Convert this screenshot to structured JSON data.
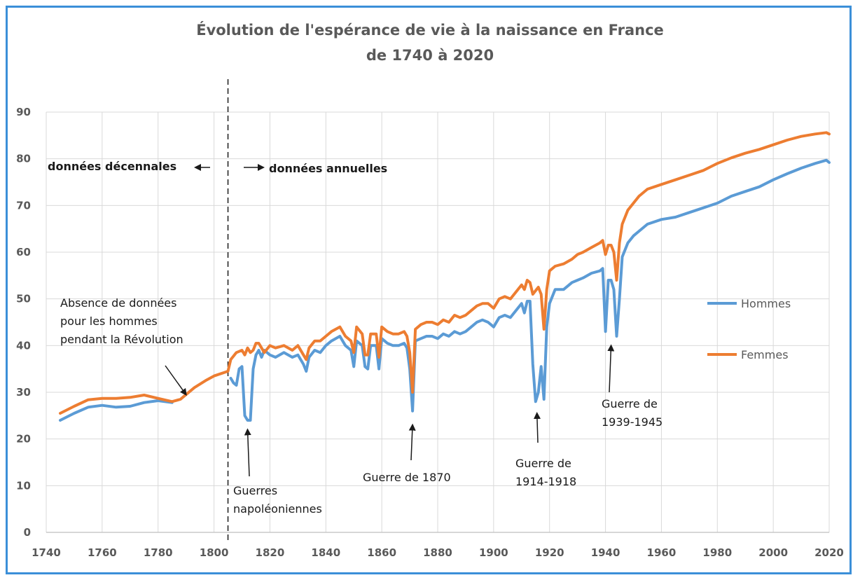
{
  "chart_data": {
    "type": "line",
    "title": "Évolution de l'espérance de vie à la naissance en France",
    "subtitle": "de 1740 à 2020",
    "xlabel": "",
    "ylabel": "",
    "xlim": [
      1740,
      2020
    ],
    "ylim": [
      0,
      90
    ],
    "x_ticks": [
      1740,
      1760,
      1780,
      1800,
      1820,
      1840,
      1860,
      1880,
      1900,
      1920,
      1940,
      1960,
      1980,
      2000,
      2020
    ],
    "y_ticks": [
      0,
      10,
      20,
      30,
      40,
      50,
      60,
      70,
      80,
      90
    ],
    "grid": true,
    "legend_position": "right",
    "divider_year": 1805,
    "series": [
      {
        "name": "Hommes",
        "color": "#5b9bd5",
        "points": [
          [
            1745,
            24
          ],
          [
            1750,
            25.5
          ],
          [
            1755,
            26.8
          ],
          [
            1760,
            27.2
          ],
          [
            1765,
            26.8
          ],
          [
            1770,
            27
          ],
          [
            1775,
            27.8
          ],
          [
            1780,
            28.2
          ],
          [
            1785,
            27.8
          ],
          [
            1806,
            33
          ],
          [
            1807,
            32
          ],
          [
            1808,
            31.5
          ],
          [
            1809,
            35
          ],
          [
            1810,
            35.5
          ],
          [
            1811,
            25
          ],
          [
            1812,
            24
          ],
          [
            1813,
            24
          ],
          [
            1814,
            35
          ],
          [
            1815,
            38
          ],
          [
            1816,
            39
          ],
          [
            1817,
            37.5
          ],
          [
            1818,
            39
          ],
          [
            1820,
            38
          ],
          [
            1822,
            37.5
          ],
          [
            1825,
            38.5
          ],
          [
            1828,
            37.5
          ],
          [
            1830,
            38
          ],
          [
            1832,
            36
          ],
          [
            1833,
            34.5
          ],
          [
            1834,
            37.5
          ],
          [
            1836,
            39
          ],
          [
            1838,
            38.5
          ],
          [
            1840,
            40
          ],
          [
            1842,
            41
          ],
          [
            1845,
            42
          ],
          [
            1847,
            40
          ],
          [
            1849,
            39
          ],
          [
            1850,
            35.5
          ],
          [
            1851,
            41
          ],
          [
            1853,
            40
          ],
          [
            1854,
            35.5
          ],
          [
            1855,
            35
          ],
          [
            1856,
            40
          ],
          [
            1858,
            40
          ],
          [
            1859,
            35
          ],
          [
            1860,
            41.5
          ],
          [
            1862,
            40.5
          ],
          [
            1864,
            40
          ],
          [
            1866,
            40
          ],
          [
            1868,
            40.5
          ],
          [
            1869,
            39.5
          ],
          [
            1870,
            35
          ],
          [
            1871,
            26
          ],
          [
            1872,
            41
          ],
          [
            1874,
            41.5
          ],
          [
            1876,
            42
          ],
          [
            1878,
            42
          ],
          [
            1880,
            41.5
          ],
          [
            1882,
            42.5
          ],
          [
            1884,
            42
          ],
          [
            1886,
            43
          ],
          [
            1888,
            42.5
          ],
          [
            1890,
            43
          ],
          [
            1892,
            44
          ],
          [
            1894,
            45
          ],
          [
            1896,
            45.5
          ],
          [
            1898,
            45
          ],
          [
            1900,
            44
          ],
          [
            1902,
            46
          ],
          [
            1904,
            46.5
          ],
          [
            1906,
            46
          ],
          [
            1908,
            47.5
          ],
          [
            1910,
            49
          ],
          [
            1911,
            47
          ],
          [
            1912,
            49.5
          ],
          [
            1913,
            49.5
          ],
          [
            1914,
            36
          ],
          [
            1915,
            28
          ],
          [
            1916,
            30
          ],
          [
            1917,
            35.5
          ],
          [
            1918,
            28.5
          ],
          [
            1919,
            44
          ],
          [
            1920,
            49
          ],
          [
            1922,
            52
          ],
          [
            1925,
            52
          ],
          [
            1928,
            53.5
          ],
          [
            1930,
            54
          ],
          [
            1932,
            54.5
          ],
          [
            1935,
            55.5
          ],
          [
            1938,
            56
          ],
          [
            1939,
            56.5
          ],
          [
            1940,
            43
          ],
          [
            1941,
            54
          ],
          [
            1942,
            54
          ],
          [
            1943,
            52
          ],
          [
            1944,
            42
          ],
          [
            1945,
            50
          ],
          [
            1946,
            59
          ],
          [
            1948,
            62
          ],
          [
            1950,
            63.5
          ],
          [
            1952,
            64.5
          ],
          [
            1955,
            66
          ],
          [
            1960,
            67
          ],
          [
            1965,
            67.5
          ],
          [
            1970,
            68.5
          ],
          [
            1975,
            69.5
          ],
          [
            1980,
            70.5
          ],
          [
            1985,
            72
          ],
          [
            1990,
            73
          ],
          [
            1995,
            74
          ],
          [
            2000,
            75.5
          ],
          [
            2005,
            76.8
          ],
          [
            2010,
            78
          ],
          [
            2015,
            79
          ],
          [
            2019,
            79.7
          ],
          [
            2020,
            79.2
          ]
        ]
      },
      {
        "name": "Femmes",
        "color": "#ed7d31",
        "points": [
          [
            1745,
            25.5
          ],
          [
            1750,
            27
          ],
          [
            1755,
            28.4
          ],
          [
            1760,
            28.7
          ],
          [
            1765,
            28.7
          ],
          [
            1770,
            28.9
          ],
          [
            1775,
            29.4
          ],
          [
            1780,
            28.7
          ],
          [
            1785,
            28
          ],
          [
            1788,
            28.5
          ],
          [
            1790,
            29.5
          ],
          [
            1793,
            31
          ],
          [
            1797,
            32.5
          ],
          [
            1800,
            33.5
          ],
          [
            1805,
            34.5
          ],
          [
            1806,
            37
          ],
          [
            1808,
            38.5
          ],
          [
            1810,
            39
          ],
          [
            1811,
            38
          ],
          [
            1812,
            39.5
          ],
          [
            1813,
            38.5
          ],
          [
            1814,
            39
          ],
          [
            1815,
            40.5
          ],
          [
            1816,
            40.5
          ],
          [
            1818,
            38.5
          ],
          [
            1820,
            40
          ],
          [
            1822,
            39.5
          ],
          [
            1825,
            40
          ],
          [
            1828,
            39
          ],
          [
            1830,
            40
          ],
          [
            1832,
            38
          ],
          [
            1833,
            37
          ],
          [
            1834,
            39.5
          ],
          [
            1836,
            41
          ],
          [
            1838,
            41
          ],
          [
            1840,
            42
          ],
          [
            1842,
            43
          ],
          [
            1845,
            44
          ],
          [
            1847,
            42
          ],
          [
            1849,
            41
          ],
          [
            1850,
            38.5
          ],
          [
            1851,
            44
          ],
          [
            1853,
            42.5
          ],
          [
            1854,
            38
          ],
          [
            1855,
            38
          ],
          [
            1856,
            42.5
          ],
          [
            1858,
            42.5
          ],
          [
            1859,
            37.5
          ],
          [
            1860,
            44
          ],
          [
            1862,
            43
          ],
          [
            1864,
            42.5
          ],
          [
            1866,
            42.5
          ],
          [
            1868,
            43
          ],
          [
            1869,
            42
          ],
          [
            1870,
            38.5
          ],
          [
            1871,
            30
          ],
          [
            1872,
            43.5
          ],
          [
            1874,
            44.5
          ],
          [
            1876,
            45
          ],
          [
            1878,
            45
          ],
          [
            1880,
            44.5
          ],
          [
            1882,
            45.5
          ],
          [
            1884,
            45
          ],
          [
            1886,
            46.5
          ],
          [
            1888,
            46
          ],
          [
            1890,
            46.5
          ],
          [
            1892,
            47.5
          ],
          [
            1894,
            48.5
          ],
          [
            1896,
            49
          ],
          [
            1898,
            49
          ],
          [
            1900,
            48
          ],
          [
            1902,
            50
          ],
          [
            1904,
            50.5
          ],
          [
            1906,
            50
          ],
          [
            1908,
            51.5
          ],
          [
            1910,
            53
          ],
          [
            1911,
            52
          ],
          [
            1912,
            54
          ],
          [
            1913,
            53.5
          ],
          [
            1914,
            51
          ],
          [
            1916,
            52.5
          ],
          [
            1917,
            51
          ],
          [
            1918,
            43.5
          ],
          [
            1919,
            52
          ],
          [
            1920,
            56
          ],
          [
            1922,
            57
          ],
          [
            1925,
            57.5
          ],
          [
            1928,
            58.5
          ],
          [
            1930,
            59.5
          ],
          [
            1932,
            60
          ],
          [
            1935,
            61
          ],
          [
            1938,
            62
          ],
          [
            1939,
            62.5
          ],
          [
            1940,
            59.5
          ],
          [
            1941,
            61.5
          ],
          [
            1942,
            61.5
          ],
          [
            1943,
            60
          ],
          [
            1944,
            54
          ],
          [
            1945,
            62
          ],
          [
            1946,
            66
          ],
          [
            1948,
            69
          ],
          [
            1950,
            70.5
          ],
          [
            1952,
            72
          ],
          [
            1955,
            73.5
          ],
          [
            1960,
            74.5
          ],
          [
            1965,
            75.5
          ],
          [
            1970,
            76.5
          ],
          [
            1975,
            77.5
          ],
          [
            1980,
            79
          ],
          [
            1985,
            80.2
          ],
          [
            1990,
            81.2
          ],
          [
            1995,
            82
          ],
          [
            2000,
            83
          ],
          [
            2005,
            84
          ],
          [
            2010,
            84.8
          ],
          [
            2015,
            85.3
          ],
          [
            2019,
            85.6
          ],
          [
            2020,
            85.3
          ]
        ]
      }
    ],
    "annotations": [
      {
        "text": "données décennales",
        "style": "bold"
      },
      {
        "text": "données annuelles",
        "style": "bold"
      },
      {
        "text": "Absence de données pour les hommes pendant la Révolution",
        "lines": [
          "Absence de données",
          "pour les hommes",
          "pendant la Révolution"
        ],
        "arrow_to": [
          1790,
          29.5
        ]
      },
      {
        "text": "Guerres napoléoniennes",
        "lines": [
          "Guerres",
          "napoléoniennes"
        ],
        "arrow_to": [
          1812,
          22
        ]
      },
      {
        "text": "Guerre de 1870",
        "lines": [
          "Guerre de 1870"
        ],
        "arrow_to": [
          1871,
          23
        ]
      },
      {
        "text": "Guerre de 1914-1918",
        "lines": [
          "Guerre de",
          "1914-1918"
        ],
        "arrow_to": [
          1915.5,
          25.5
        ]
      },
      {
        "text": "Guerre de 1939-1945",
        "lines": [
          "Guerre de",
          "1939-1945"
        ],
        "arrow_to": [
          1942,
          40
        ]
      }
    ]
  }
}
